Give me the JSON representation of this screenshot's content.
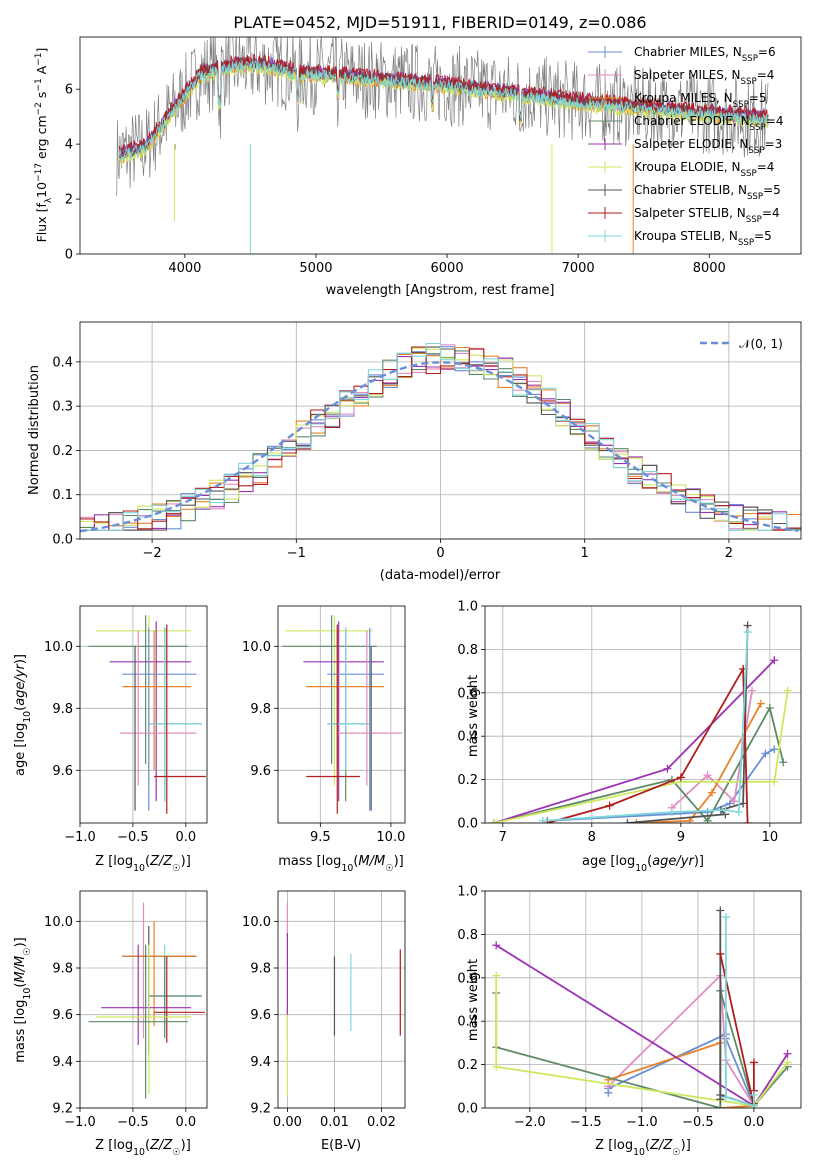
{
  "chart_data": [
    {
      "type": "line",
      "id": "spectrum",
      "title": "PLATE=0452, MJD=51911, FIBERID=0149, z=0.086",
      "xlabel": "wavelength [Angstrom, rest frame]",
      "ylabel_main": "Flux [f",
      "ylabel_sub": "λ",
      "ylabel_rest": "10",
      "ylabel_sup": "−17",
      "ylabel_tail": " erg cm",
      "ylabel_sup2": "−2",
      "ylabel_s": " s",
      "ylabel_sup3": "−1",
      "ylabel_A": " A",
      "ylabel_sup4": "−1",
      "ylabel_end": "]",
      "xlim": [
        3200,
        8700
      ],
      "ylim": [
        0,
        7.9
      ],
      "xticks": [
        "4000",
        "5000",
        "6000",
        "7000",
        "8000"
      ],
      "xtick_values": [
        4000,
        5000,
        6000,
        7000,
        8000
      ],
      "yticks": [
        "0",
        "2",
        "4",
        "6"
      ],
      "ytick_values": [
        0,
        2,
        4,
        6
      ],
      "grid": false,
      "legend_position": "upper-right",
      "series": [
        {
          "name": "Chabrier MILES, N",
          "sub": "SSP",
          "n": "=6",
          "color": "#6a8fd6"
        },
        {
          "name": "Salpeter MILES, N",
          "sub": "SSP",
          "n": "=4",
          "color": "#e28dc1"
        },
        {
          "name": "Kroupa MILES, N",
          "sub": "SSP",
          "n": "=5",
          "color": "#e8832b"
        },
        {
          "name": "Chabrier ELODIE, N",
          "sub": "SSP",
          "n": "=4",
          "color": "#5f8a6a"
        },
        {
          "name": "Salpeter ELODIE, N",
          "sub": "SSP",
          "n": "=3",
          "color": "#9b34b2"
        },
        {
          "name": "Kroupa ELODIE, N",
          "sub": "SSP",
          "n": "=4",
          "color": "#cfe85f"
        },
        {
          "name": "Chabrier STELIB, N",
          "sub": "SSP",
          "n": "=5",
          "color": "#555555"
        },
        {
          "name": "Salpeter STELIB, N",
          "sub": "SSP",
          "n": "=4",
          "color": "#b01d1d"
        },
        {
          "name": "Kroupa STELIB, N",
          "sub": "SSP",
          "n": "=5",
          "color": "#7fd8dc"
        }
      ]
    },
    {
      "type": "line",
      "id": "residuals",
      "xlabel": "(data-model)/error",
      "ylabel": "Normed distribution",
      "xlim": [
        -2.5,
        2.5
      ],
      "ylim": [
        0,
        0.49
      ],
      "xticks": [
        "−2",
        "−1",
        "0",
        "1",
        "2"
      ],
      "xtick_values": [
        -2,
        -1,
        0,
        1,
        2
      ],
      "yticks": [
        "0.0",
        "0.1",
        "0.2",
        "0.3",
        "0.4"
      ],
      "ytick_values": [
        0,
        0.1,
        0.2,
        0.3,
        0.4
      ],
      "grid": true,
      "legend_label": "𝒩(0, 1)",
      "normal_color": "#6a8fd6",
      "legend_position": "upper-right"
    },
    {
      "type": "scatter",
      "id": "age-vs-Z",
      "xlabel": "Z [log",
      "xlabel_sub": "10",
      "xlabel_tail": "(Z/Z",
      "xlabel_sub2": "☉",
      "xlabel_end": ")]",
      "ylabel": "age  [log",
      "ylabel_sub": "10",
      "ylabel_tail": "(age/yr)]",
      "xlim": [
        -1.0,
        0.2
      ],
      "ylim": [
        9.43,
        10.13
      ],
      "xticks": [
        "−1.0",
        "−0.5",
        "0.0"
      ],
      "xtick_values": [
        -1.0,
        -0.5,
        0.0
      ],
      "yticks": [
        "9.6",
        "9.8",
        "10.0"
      ],
      "ytick_values": [
        9.6,
        9.8,
        10.0
      ],
      "grid": true,
      "errorbars": [
        {
          "x": -0.35,
          "y": 10.05,
          "xlo": -0.85,
          "xhi": 0.05,
          "ylo": 9.55,
          "yhi": 10.1,
          "color": "#cfe85f"
        },
        {
          "x": -0.38,
          "y": 10.0,
          "xlo": -0.92,
          "xhi": 0.02,
          "ylo": 9.62,
          "yhi": 10.1,
          "color": "#5f8a6a"
        },
        {
          "x": -0.28,
          "y": 9.95,
          "xlo": -0.72,
          "xhi": 0.05,
          "ylo": 9.5,
          "yhi": 10.08,
          "color": "#9b34b2"
        },
        {
          "x": -0.35,
          "y": 9.91,
          "xlo": -0.6,
          "xhi": 0.1,
          "ylo": 9.47,
          "yhi": 10.06,
          "color": "#6a8fd6"
        },
        {
          "x": -0.3,
          "y": 9.87,
          "xlo": -0.6,
          "xhi": 0.05,
          "ylo": 9.6,
          "yhi": 10.05,
          "color": "#e8832b"
        },
        {
          "x": -0.2,
          "y": 9.75,
          "xlo": -0.35,
          "xhi": 0.15,
          "ylo": 9.5,
          "yhi": 10.06,
          "color": "#5f8a6a"
        },
        {
          "x": -0.2,
          "y": 9.75,
          "xlo": -0.35,
          "xhi": 0.15,
          "ylo": 9.5,
          "yhi": 10.06,
          "color": "#7fd8dc"
        },
        {
          "x": -0.45,
          "y": 9.72,
          "xlo": -0.62,
          "xhi": 0.1,
          "ylo": 9.55,
          "yhi": 10.05,
          "color": "#e28dc1"
        },
        {
          "x": -0.18,
          "y": 9.58,
          "xlo": -0.3,
          "xhi": 0.19,
          "ylo": 9.46,
          "yhi": 10.07,
          "color": "#b01d1d"
        },
        {
          "x": -0.48,
          "y": 9.7,
          "xlo": -0.48,
          "xhi": -0.48,
          "ylo": 9.47,
          "yhi": 10.0,
          "color": "#555555"
        }
      ]
    },
    {
      "type": "scatter",
      "id": "age-vs-mass",
      "xlabel": "mass [log",
      "xlabel_sub": "10",
      "xlabel_tail": "(M/M",
      "xlabel_sub2": "☉",
      "xlabel_end": ")]",
      "xlim": [
        9.2,
        10.1
      ],
      "ylim": [
        9.43,
        10.13
      ],
      "xticks": [
        "9.5",
        "10.0"
      ],
      "xtick_values": [
        9.5,
        10.0
      ],
      "yticks": [
        "9.6",
        "9.8",
        "10.0"
      ],
      "ytick_values": [
        9.6,
        9.8,
        10.0
      ],
      "grid": true,
      "errorbars": [
        {
          "x": 9.6,
          "y": 10.05,
          "xlo": 9.25,
          "xhi": 9.87,
          "ylo": 9.55,
          "yhi": 10.1,
          "color": "#cfe85f"
        },
        {
          "x": 9.58,
          "y": 10.0,
          "xlo": 9.23,
          "xhi": 9.9,
          "ylo": 9.62,
          "yhi": 10.1,
          "color": "#5f8a6a"
        },
        {
          "x": 9.63,
          "y": 9.95,
          "xlo": 9.38,
          "xhi": 9.95,
          "ylo": 9.5,
          "yhi": 10.08,
          "color": "#9b34b2"
        },
        {
          "x": 9.85,
          "y": 9.91,
          "xlo": 9.55,
          "xhi": 9.95,
          "ylo": 9.47,
          "yhi": 10.06,
          "color": "#6a8fd6"
        },
        {
          "x": 9.62,
          "y": 9.87,
          "xlo": 9.4,
          "xhi": 9.95,
          "ylo": 9.6,
          "yhi": 10.05,
          "color": "#e8832b"
        },
        {
          "x": 9.68,
          "y": 9.75,
          "xlo": 9.55,
          "xhi": 9.85,
          "ylo": 9.5,
          "yhi": 10.06,
          "color": "#5f8a6a"
        },
        {
          "x": 9.68,
          "y": 9.75,
          "xlo": 9.55,
          "xhi": 9.85,
          "ylo": 9.6,
          "yhi": 10.06,
          "color": "#7fd8dc"
        },
        {
          "x": 9.83,
          "y": 9.72,
          "xlo": 9.62,
          "xhi": 10.08,
          "ylo": 9.55,
          "yhi": 10.05,
          "color": "#e28dc1"
        },
        {
          "x": 9.62,
          "y": 9.58,
          "xlo": 9.4,
          "xhi": 9.78,
          "ylo": 9.46,
          "yhi": 10.07,
          "color": "#b01d1d"
        },
        {
          "x": 9.86,
          "y": 9.7,
          "xlo": 9.86,
          "xhi": 9.86,
          "ylo": 9.47,
          "yhi": 10.0,
          "color": "#555555"
        }
      ]
    },
    {
      "type": "line",
      "id": "mass-weight-vs-age",
      "xlabel": "age  [log",
      "xlabel_sub": "10",
      "xlabel_tail": "(age/yr)]",
      "ylabel": "mass weight",
      "xlim": [
        6.8,
        10.35
      ],
      "ylim": [
        0,
        1.0
      ],
      "xticks": [
        "7",
        "8",
        "9",
        "10"
      ],
      "xtick_values": [
        7,
        8,
        9,
        10
      ],
      "yticks": [
        "0.0",
        "0.2",
        "0.4",
        "0.6",
        "0.8",
        "1.0"
      ],
      "ytick_values": [
        0,
        0.2,
        0.4,
        0.6,
        0.8,
        1.0
      ],
      "grid": true,
      "series": [
        {
          "color": "#6a8fd6",
          "x": [
            7.5,
            9.3,
            9.55,
            9.95,
            10.05
          ],
          "y": [
            0.01,
            0.05,
            0.09,
            0.32,
            0.34
          ]
        },
        {
          "color": "#e28dc1",
          "x": [
            8.9,
            9.3,
            9.6,
            9.8
          ],
          "y": [
            0.07,
            0.22,
            0.1,
            0.61
          ]
        },
        {
          "color": "#e8832b",
          "x": [
            8.5,
            9.1,
            9.35,
            9.9
          ],
          "y": [
            0.0,
            0.01,
            0.14,
            0.55
          ]
        },
        {
          "color": "#5f8a6a",
          "x": [
            6.9,
            8.9,
            9.3,
            10.0,
            10.15
          ],
          "y": [
            0.0,
            0.2,
            0.01,
            0.53,
            0.28
          ]
        },
        {
          "color": "#9b34b2",
          "x": [
            6.9,
            8.85,
            10.05
          ],
          "y": [
            0.0,
            0.25,
            0.75
          ]
        },
        {
          "color": "#cfe85f",
          "x": [
            6.9,
            9.0,
            10.05,
            10.2
          ],
          "y": [
            0.0,
            0.19,
            0.19,
            0.61
          ]
        },
        {
          "color": "#555555",
          "x": [
            8.4,
            9.5,
            9.45,
            9.7,
            9.75
          ],
          "y": [
            0.0,
            0.04,
            0.06,
            0.09,
            0.91
          ]
        },
        {
          "color": "#b01d1d",
          "x": [
            7.5,
            8.2,
            9.0,
            9.7,
            9.75
          ],
          "y": [
            0.0,
            0.08,
            0.21,
            0.71,
            0.0
          ]
        },
        {
          "color": "#7fd8dc",
          "x": [
            7.45,
            8.9,
            9.5,
            9.65,
            9.75
          ],
          "y": [
            0.01,
            0.05,
            0.06,
            0.05,
            0.88
          ]
        }
      ]
    },
    {
      "type": "scatter",
      "id": "mass-vs-Z",
      "xlabel": "Z [log",
      "xlabel_sub": "10",
      "xlabel_tail": "(Z/Z",
      "xlabel_sub2": "☉",
      "xlabel_end": ")]",
      "ylabel": "mass [log",
      "ylabel_sub": "10",
      "ylabel_tail": "(M/M",
      "ylabel_sub2": "☉",
      "ylabel_end": ")]",
      "xlim": [
        -1.0,
        0.2
      ],
      "ylim": [
        9.2,
        10.13
      ],
      "xticks": [
        "−1.0",
        "−0.5",
        "0.0"
      ],
      "xtick_values": [
        -1.0,
        -0.5,
        0.0
      ],
      "yticks": [
        "9.2",
        "9.4",
        "9.6",
        "9.8",
        "10.0"
      ],
      "ytick_values": [
        9.2,
        9.4,
        9.6,
        9.8,
        10.0
      ],
      "grid": true,
      "errorbars": [
        {
          "x": -0.4,
          "y": 9.85,
          "xlo": -0.6,
          "xhi": 0.1,
          "ylo": 9.5,
          "yhi": 10.08,
          "color": "#e28dc1"
        },
        {
          "x": -0.35,
          "y": 9.85,
          "xlo": -0.6,
          "xhi": 0.1,
          "ylo": 9.43,
          "yhi": 9.98,
          "color": "#555555"
        },
        {
          "x": -0.3,
          "y": 9.85,
          "xlo": -0.6,
          "xhi": 0.1,
          "ylo": 9.55,
          "yhi": 10.0,
          "color": "#e8832b"
        },
        {
          "x": -0.2,
          "y": 9.68,
          "xlo": -0.35,
          "xhi": 0.15,
          "ylo": 9.55,
          "yhi": 9.9,
          "color": "#7fd8dc"
        },
        {
          "x": -0.2,
          "y": 9.68,
          "xlo": -0.35,
          "xhi": 0.15,
          "ylo": 9.5,
          "yhi": 9.85,
          "color": "#5f8a6a"
        },
        {
          "x": -0.45,
          "y": 9.63,
          "xlo": -0.8,
          "xhi": 0.05,
          "ylo": 9.47,
          "yhi": 9.9,
          "color": "#9b34b2"
        },
        {
          "x": -0.18,
          "y": 9.61,
          "xlo": -0.3,
          "xhi": 0.18,
          "ylo": 9.48,
          "yhi": 9.85,
          "color": "#b01d1d"
        },
        {
          "x": -0.35,
          "y": 9.59,
          "xlo": -0.85,
          "xhi": 0.05,
          "ylo": 9.26,
          "yhi": 9.9,
          "color": "#cfe85f"
        },
        {
          "x": -0.38,
          "y": 9.57,
          "xlo": -0.92,
          "xhi": 0.02,
          "ylo": 9.24,
          "yhi": 9.9,
          "color": "#5f8a6a"
        }
      ]
    },
    {
      "type": "scatter",
      "id": "mass-vs-EBV",
      "xlabel": "E(B-V)",
      "xlim": [
        -0.002,
        0.025
      ],
      "ylim": [
        9.2,
        10.13
      ],
      "xticks": [
        "0.00",
        "0.01",
        "0.02"
      ],
      "xtick_values": [
        0.0,
        0.01,
        0.02
      ],
      "yticks": [
        "9.2",
        "9.4",
        "9.6",
        "9.8",
        "10.0"
      ],
      "ytick_values": [
        9.2,
        9.4,
        9.6,
        9.8,
        10.0
      ],
      "grid": true,
      "errorbars": [
        {
          "x": 0.0,
          "y": 9.8,
          "xlo": 0.0,
          "xhi": 0.0,
          "ylo": 9.5,
          "yhi": 10.08,
          "color": "#e28dc1"
        },
        {
          "x": 0.0,
          "y": 9.7,
          "xlo": 0.0,
          "xhi": 0.0,
          "ylo": 9.25,
          "yhi": 9.95,
          "color": "#cfe85f"
        },
        {
          "x": 0.0,
          "y": 9.8,
          "xlo": 0.0,
          "xhi": 0.0,
          "ylo": 9.6,
          "yhi": 9.95,
          "color": "#9b34b2"
        },
        {
          "x": 0.01,
          "y": 9.68,
          "xlo": 0.01,
          "xhi": 0.01,
          "ylo": 9.51,
          "yhi": 9.85,
          "color": "#555555"
        },
        {
          "x": 0.0135,
          "y": 9.7,
          "xlo": 0.0135,
          "xhi": 0.0135,
          "ylo": 9.53,
          "yhi": 9.86,
          "color": "#7fd8dc"
        },
        {
          "x": 0.024,
          "y": 9.7,
          "xlo": 0.024,
          "xhi": 0.024,
          "ylo": 9.51,
          "yhi": 9.88,
          "color": "#b01d1d"
        }
      ]
    },
    {
      "type": "line",
      "id": "mass-weight-vs-Z",
      "xlabel": "Z [log",
      "xlabel_sub": "10",
      "xlabel_tail": "(Z/Z",
      "xlabel_sub2": "☉",
      "xlabel_end": ")]",
      "ylabel": "mass weight",
      "xlim": [
        -2.4,
        0.42
      ],
      "ylim": [
        0,
        1.0
      ],
      "xticks": [
        "−2.0",
        "−1.5",
        "−1.0",
        "−0.5",
        "0.0"
      ],
      "xtick_values": [
        -2.0,
        -1.5,
        -1.0,
        -0.5,
        0.0
      ],
      "yticks": [
        "0.0",
        "0.2",
        "0.4",
        "0.6",
        "0.8",
        "1.0"
      ],
      "ytick_values": [
        0,
        0.2,
        0.4,
        0.6,
        0.8,
        1.0
      ],
      "grid": true,
      "series": [
        {
          "color": "#6a8fd6",
          "x": [
            -1.3,
            -1.3,
            -0.25,
            -0.25,
            0.0
          ],
          "y": [
            0.07,
            0.09,
            0.34,
            0.32,
            0.01
          ]
        },
        {
          "color": "#e28dc1",
          "x": [
            -1.3,
            -0.3,
            -0.25,
            0.0
          ],
          "y": [
            0.1,
            0.61,
            0.22,
            0.01
          ]
        },
        {
          "color": "#e8832b",
          "x": [
            -1.3,
            -0.3,
            -0.3,
            0.0
          ],
          "y": [
            0.13,
            0.3,
            0.0,
            0.01
          ]
        },
        {
          "color": "#5f8a6a",
          "x": [
            -2.3,
            -2.3,
            -0.3,
            -0.3,
            0.0,
            0.3
          ],
          "y": [
            0.53,
            0.28,
            0.0,
            0.54,
            0.01,
            0.19
          ]
        },
        {
          "color": "#9b34b2",
          "x": [
            -2.3,
            0.0,
            0.3
          ],
          "y": [
            0.75,
            0.01,
            0.25
          ]
        },
        {
          "color": "#cfe85f",
          "x": [
            -2.3,
            -2.3,
            0.0,
            0.3
          ],
          "y": [
            0.61,
            0.19,
            0.01,
            0.21
          ]
        },
        {
          "color": "#555555",
          "x": [
            -0.3,
            -0.3,
            -0.3,
            0.0,
            0.0
          ],
          "y": [
            0.91,
            0.04,
            0.06,
            0.01,
            0.02
          ]
        },
        {
          "color": "#b01d1d",
          "x": [
            -0.3,
            0.0,
            0.0,
            0.0
          ],
          "y": [
            0.71,
            0.01,
            0.21,
            0.08
          ]
        },
        {
          "color": "#7fd8dc",
          "x": [
            -0.25,
            -0.25,
            0.0,
            0.0
          ],
          "y": [
            0.88,
            0.05,
            0.01,
            0.06
          ]
        }
      ]
    }
  ]
}
